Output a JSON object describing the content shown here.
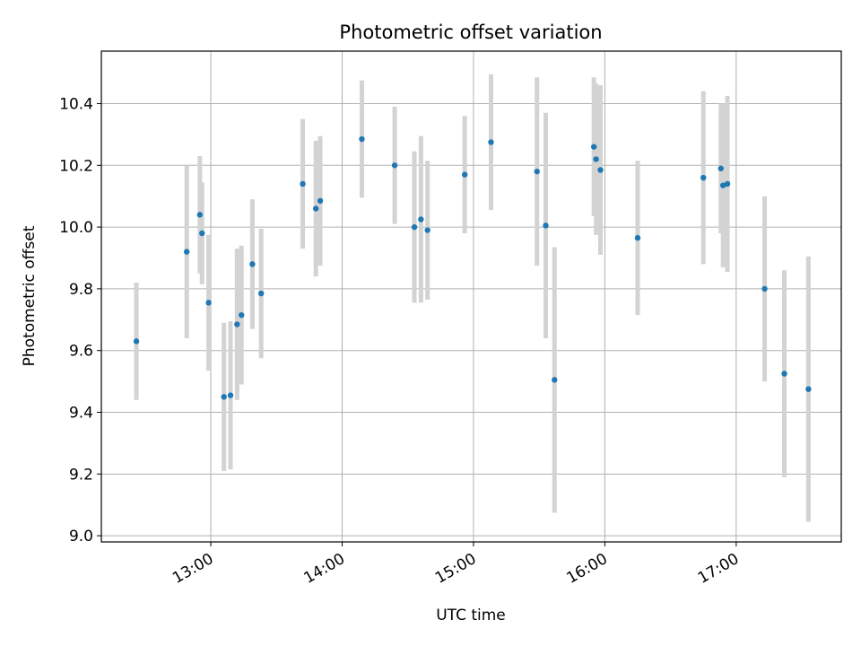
{
  "chart_data": {
    "type": "scatter",
    "title": "Photometric offset variation",
    "xlabel": "UTC time",
    "ylabel": "Photometric offset",
    "x_ticks": [
      "13:00",
      "14:00",
      "15:00",
      "16:00",
      "17:00"
    ],
    "y_ticks": [
      "9.0",
      "9.2",
      "9.4",
      "9.6",
      "9.8",
      "10.0",
      "10.2",
      "10.4"
    ],
    "xlim": [
      "12:10",
      "17:48"
    ],
    "ylim": [
      8.98,
      10.57
    ],
    "grid": true,
    "colors": {
      "point": "#1f77b4",
      "errorbar": "#d3d3d3",
      "grid": "#b0b0b0"
    },
    "series": [
      {
        "points": [
          {
            "t": "12:26",
            "y": 9.63,
            "err": 0.19
          },
          {
            "t": "12:49",
            "y": 9.92,
            "err": 0.28
          },
          {
            "t": "12:55",
            "y": 10.04,
            "err": 0.19
          },
          {
            "t": "12:56",
            "y": 9.98,
            "err": 0.165
          },
          {
            "t": "12:59",
            "y": 9.755,
            "err": 0.22
          },
          {
            "t": "13:06",
            "y": 9.45,
            "err": 0.24
          },
          {
            "t": "13:09",
            "y": 9.455,
            "err": 0.24
          },
          {
            "t": "13:12",
            "y": 9.685,
            "err": 0.245
          },
          {
            "t": "13:14",
            "y": 9.715,
            "err": 0.225
          },
          {
            "t": "13:19",
            "y": 9.88,
            "err": 0.21
          },
          {
            "t": "13:23",
            "y": 9.785,
            "err": 0.21
          },
          {
            "t": "13:42",
            "y": 10.14,
            "err": 0.21
          },
          {
            "t": "13:48",
            "y": 10.06,
            "err": 0.22
          },
          {
            "t": "13:50",
            "y": 10.085,
            "err": 0.21
          },
          {
            "t": "14:09",
            "y": 10.285,
            "err": 0.19
          },
          {
            "t": "14:24",
            "y": 10.2,
            "err": 0.19
          },
          {
            "t": "14:33",
            "y": 10.0,
            "err": 0.245
          },
          {
            "t": "14:36",
            "y": 10.025,
            "err": 0.27
          },
          {
            "t": "14:39",
            "y": 9.99,
            "err": 0.225
          },
          {
            "t": "14:56",
            "y": 10.17,
            "err": 0.19
          },
          {
            "t": "15:08",
            "y": 10.275,
            "err": 0.22
          },
          {
            "t": "15:29",
            "y": 10.18,
            "err": 0.305
          },
          {
            "t": "15:33",
            "y": 10.005,
            "err": 0.365
          },
          {
            "t": "15:37",
            "y": 9.505,
            "err": 0.43
          },
          {
            "t": "15:55",
            "y": 10.26,
            "err": 0.225
          },
          {
            "t": "15:56",
            "y": 10.22,
            "err": 0.245
          },
          {
            "t": "15:58",
            "y": 10.185,
            "err": 0.275
          },
          {
            "t": "16:15",
            "y": 9.965,
            "err": 0.25
          },
          {
            "t": "16:45",
            "y": 10.16,
            "err": 0.28
          },
          {
            "t": "16:53",
            "y": 10.19,
            "err": 0.21
          },
          {
            "t": "16:54",
            "y": 10.135,
            "err": 0.265
          },
          {
            "t": "16:56",
            "y": 10.14,
            "err": 0.285
          },
          {
            "t": "17:13",
            "y": 9.8,
            "err": 0.3
          },
          {
            "t": "17:22",
            "y": 9.525,
            "err": 0.335
          },
          {
            "t": "17:33",
            "y": 9.475,
            "err": 0.43
          }
        ]
      }
    ]
  }
}
